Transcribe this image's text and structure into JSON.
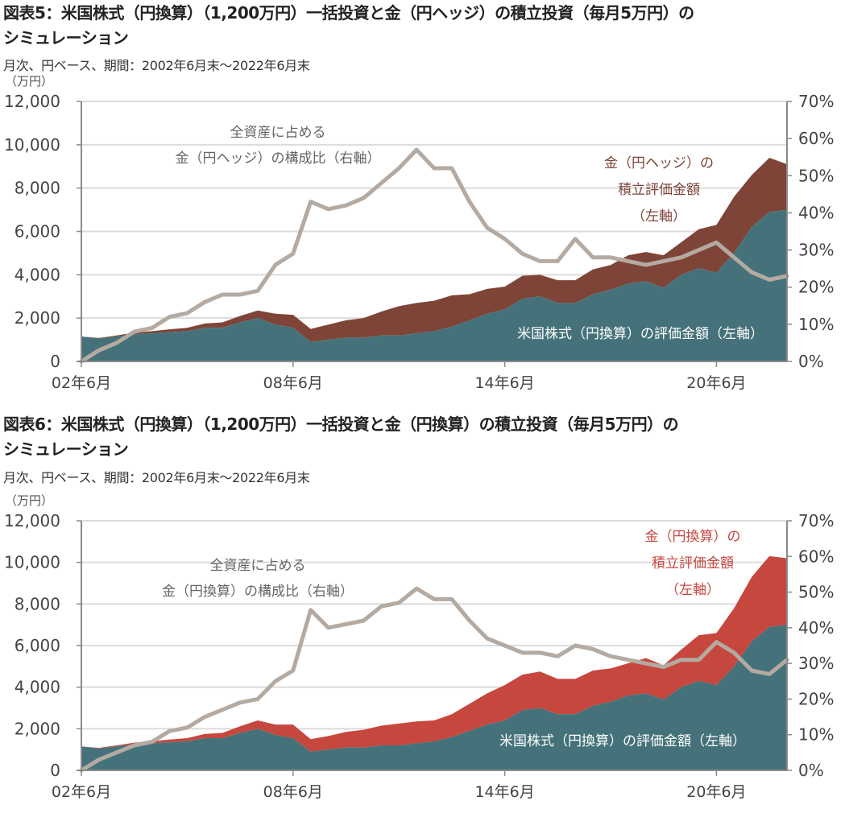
{
  "figures": [
    {
      "title_line1": "図表5：米国株式（円換算）（1,200万円）一括投資と金（円ヘッジ）の積立投資（毎月5万円）の",
      "title_line2": "シミュレーション",
      "subtitle": "月次、円ベース、期間：2002年6月末～2022年6月末",
      "unit_label": "（万円）",
      "annotation_ratio": [
        "全資産に占める",
        "金（円ヘッジ）の構成比（右軸）"
      ],
      "annotation_gold": [
        "金（円ヘッジ）の",
        "積立評価金額",
        "（左軸）"
      ],
      "annotation_stock": "米国株式（円換算）の評価金額（左軸）"
    },
    {
      "title_line1": "図表6：米国株式（円換算）（1,200万円）一括投資と金（円換算）の積立投資（毎月5万円）の",
      "title_line2": "シミュレーション",
      "subtitle": "月次、円ベース、期間：2002年6月末～2022年6月末",
      "unit_label": "（万円）",
      "annotation_ratio": [
        "全資産に占める",
        "金（円換算）の構成比（右軸）"
      ],
      "annotation_gold": [
        "金（円換算）の",
        "積立評価金額",
        "（左軸）"
      ],
      "annotation_stock": "米国株式（円換算）の評価金額（左軸）"
    }
  ],
  "chart_data": [
    {
      "type": "area",
      "title": "図表5：米国株式（円換算）（1,200万円）一括投資と金（円ヘッジ）の積立投資（毎月5万円）のシミュレーション",
      "xlabel": "",
      "ylabel": "（万円）",
      "y2label": "",
      "ylim": [
        0,
        12000
      ],
      "y2lim": [
        0,
        70
      ],
      "yticks": [
        "0",
        "2,000",
        "4,000",
        "6,000",
        "8,000",
        "10,000",
        "12,000"
      ],
      "y2ticks": [
        "0%",
        "10%",
        "20%",
        "30%",
        "40%",
        "50%",
        "60%",
        "70%"
      ],
      "xticks": [
        "02年6月",
        "08年6月",
        "14年6月",
        "20年6月"
      ],
      "xtick_values": [
        2002.5,
        2008.5,
        2014.5,
        2020.5
      ],
      "xlim": [
        2002.5,
        2022.5
      ],
      "grid": true,
      "colors": {
        "stock": "#45727a",
        "gold": "#7e4438",
        "ratio": "#b4aaa1",
        "gold_label": "#7e4438"
      },
      "x": [
        2002.5,
        2003.0,
        2003.5,
        2004.0,
        2004.5,
        2005.0,
        2005.5,
        2006.0,
        2006.5,
        2007.0,
        2007.5,
        2008.0,
        2008.5,
        2009.0,
        2009.5,
        2010.0,
        2010.5,
        2011.0,
        2011.5,
        2012.0,
        2012.5,
        2013.0,
        2013.5,
        2014.0,
        2014.5,
        2015.0,
        2015.5,
        2016.0,
        2016.5,
        2017.0,
        2017.5,
        2018.0,
        2018.5,
        2019.0,
        2019.5,
        2020.0,
        2020.5,
        2021.0,
        2021.5,
        2022.0,
        2022.5
      ],
      "series": [
        {
          "name": "米国株式（円換算）の評価金額（左軸）",
          "axis": "left",
          "kind": "stacked-area",
          "values": [
            1150,
            1050,
            1150,
            1250,
            1300,
            1350,
            1400,
            1550,
            1550,
            1800,
            2000,
            1700,
            1550,
            900,
            1000,
            1100,
            1100,
            1200,
            1200,
            1300,
            1400,
            1600,
            1900,
            2200,
            2400,
            2900,
            3000,
            2700,
            2700,
            3100,
            3300,
            3600,
            3700,
            3400,
            4000,
            4300,
            4100,
            5000,
            6200,
            6900,
            7000
          ]
        },
        {
          "name": "金（円ヘッジ）の積立評価金額（左軸）",
          "axis": "left",
          "kind": "stacked-area",
          "values": [
            0,
            30,
            50,
            80,
            100,
            130,
            150,
            200,
            250,
            300,
            350,
            500,
            600,
            600,
            700,
            800,
            900,
            1100,
            1350,
            1400,
            1400,
            1450,
            1200,
            1150,
            1050,
            1050,
            1000,
            1050,
            1050,
            1150,
            1150,
            1300,
            1350,
            1500,
            1500,
            1800,
            2200,
            2600,
            2400,
            2500,
            2100
          ]
        },
        {
          "name": "全資産に占める金（円ヘッジ）の構成比（右軸）",
          "axis": "right",
          "kind": "line",
          "values": [
            0,
            3,
            5,
            8,
            9,
            12,
            13,
            16,
            18,
            18,
            19,
            26,
            29,
            43,
            41,
            42,
            44,
            48,
            52,
            57,
            52,
            52,
            43,
            36,
            33,
            29,
            27,
            27,
            33,
            28,
            28,
            27,
            26,
            27,
            28,
            30,
            32,
            28,
            24,
            22,
            23
          ]
        }
      ]
    },
    {
      "type": "area",
      "title": "図表6：米国株式（円換算）（1,200万円）一括投資と金（円換算）の積立投資（毎月5万円）のシミュレーション",
      "xlabel": "",
      "ylabel": "（万円）",
      "y2label": "",
      "ylim": [
        0,
        12000
      ],
      "y2lim": [
        0,
        70
      ],
      "yticks": [
        "0",
        "2,000",
        "4,000",
        "6,000",
        "8,000",
        "10,000",
        "12,000"
      ],
      "y2ticks": [
        "0%",
        "10%",
        "20%",
        "30%",
        "40%",
        "50%",
        "60%",
        "70%"
      ],
      "xticks": [
        "02年6月",
        "08年6月",
        "14年6月",
        "20年6月"
      ],
      "xtick_values": [
        2002.5,
        2008.5,
        2014.5,
        2020.5
      ],
      "xlim": [
        2002.5,
        2022.5
      ],
      "grid": true,
      "colors": {
        "stock": "#45727a",
        "gold": "#c6473e",
        "ratio": "#b4aaa1",
        "gold_label": "#c6473e"
      },
      "x": [
        2002.5,
        2003.0,
        2003.5,
        2004.0,
        2004.5,
        2005.0,
        2005.5,
        2006.0,
        2006.5,
        2007.0,
        2007.5,
        2008.0,
        2008.5,
        2009.0,
        2009.5,
        2010.0,
        2010.5,
        2011.0,
        2011.5,
        2012.0,
        2012.5,
        2013.0,
        2013.5,
        2014.0,
        2014.5,
        2015.0,
        2015.5,
        2016.0,
        2016.5,
        2017.0,
        2017.5,
        2018.0,
        2018.5,
        2019.0,
        2019.5,
        2020.0,
        2020.5,
        2021.0,
        2021.5,
        2022.0,
        2022.5
      ],
      "series": [
        {
          "name": "米国株式（円換算）の評価金額（左軸）",
          "axis": "left",
          "kind": "stacked-area",
          "values": [
            1150,
            1050,
            1150,
            1250,
            1300,
            1350,
            1400,
            1550,
            1550,
            1800,
            2000,
            1700,
            1550,
            900,
            1000,
            1100,
            1100,
            1200,
            1200,
            1300,
            1400,
            1600,
            1900,
            2200,
            2400,
            2900,
            3000,
            2700,
            2700,
            3100,
            3300,
            3600,
            3700,
            3400,
            4000,
            4300,
            4100,
            5000,
            6200,
            6900,
            7000
          ]
        },
        {
          "name": "金（円換算）の積立評価金額（左軸）",
          "axis": "left",
          "kind": "stacked-area",
          "values": [
            0,
            30,
            50,
            80,
            100,
            130,
            150,
            200,
            250,
            320,
            400,
            500,
            650,
            600,
            650,
            750,
            850,
            950,
            1050,
            1050,
            1000,
            1100,
            1300,
            1500,
            1700,
            1700,
            1750,
            1700,
            1700,
            1700,
            1600,
            1550,
            1700,
            1650,
            1800,
            2200,
            2500,
            2800,
            3100,
            3400,
            3200
          ]
        },
        {
          "name": "全資産に占める金（円換算）の構成比（右軸）",
          "axis": "right",
          "kind": "line",
          "values": [
            0,
            3,
            5,
            7,
            8,
            11,
            12,
            15,
            17,
            19,
            20,
            25,
            28,
            45,
            40,
            41,
            42,
            46,
            47,
            51,
            48,
            48,
            42,
            37,
            35,
            33,
            33,
            32,
            35,
            34,
            32,
            31,
            30,
            29,
            31,
            31,
            36,
            33,
            28,
            27,
            31
          ]
        }
      ]
    }
  ]
}
